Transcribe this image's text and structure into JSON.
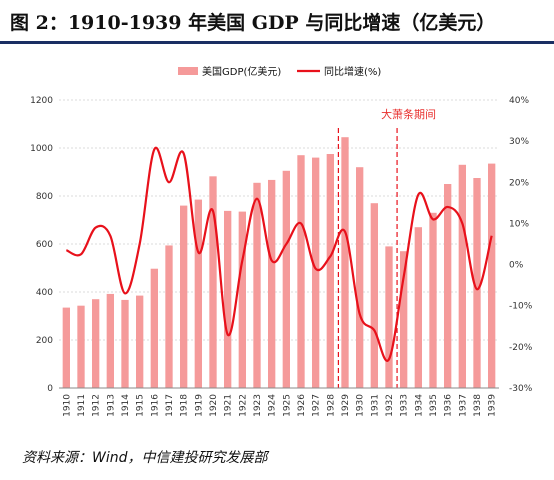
{
  "header": {
    "title": "图 2：1910-1939 年美国 GDP 与同比增速（亿美元）"
  },
  "source": "资料来源：Wind，中信建投研究发展部",
  "colors": {
    "bar": "#f59a9a",
    "line": "#e8111b",
    "dashed": "#e8111b",
    "title_rule": "#1a2f63"
  },
  "chart_data": {
    "type": "bar",
    "categories": [
      "1910",
      "1911",
      "1912",
      "1913",
      "1914",
      "1915",
      "1916",
      "1917",
      "1918",
      "1919",
      "1920",
      "1921",
      "1922",
      "1923",
      "1924",
      "1925",
      "1926",
      "1927",
      "1928",
      "1929",
      "1930",
      "1931",
      "1932",
      "1933",
      "1934",
      "1935",
      "1936",
      "1937",
      "1938",
      "1939"
    ],
    "series": [
      {
        "name": "美国GDP(亿美元)",
        "type": "bar",
        "axis": "left",
        "values": [
          335,
          343,
          370,
          392,
          367,
          385,
          497,
          594,
          760,
          785,
          882,
          738,
          735,
          855,
          867,
          905,
          970,
          960,
          975,
          1045,
          920,
          770,
          590,
          570,
          670,
          730,
          850,
          930,
          875,
          935
        ]
      },
      {
        "name": "同比增速(%)",
        "type": "line",
        "axis": "right",
        "values": [
          3.5,
          2.5,
          9,
          7,
          -7,
          5,
          28,
          20,
          27,
          3,
          13,
          -17,
          1,
          16,
          1,
          5,
          10,
          -1,
          2,
          8,
          -12,
          -16,
          -23,
          -3,
          17,
          11,
          14,
          10,
          -6,
          7
        ]
      }
    ],
    "y_left": {
      "min": 0,
      "max": 1200,
      "ticks": [
        "0",
        "200",
        "400",
        "600",
        "800",
        "1000",
        "1200"
      ]
    },
    "y_right": {
      "min": -30,
      "max": 40,
      "ticks": [
        "-30%",
        "-20%",
        "-10%",
        "0%",
        "10%",
        "20%",
        "30%",
        "40%"
      ]
    },
    "grid": true,
    "legend_position": "top",
    "annotations": [
      {
        "text": "大萧条期间",
        "from": "1929",
        "to": "1933"
      }
    ]
  }
}
